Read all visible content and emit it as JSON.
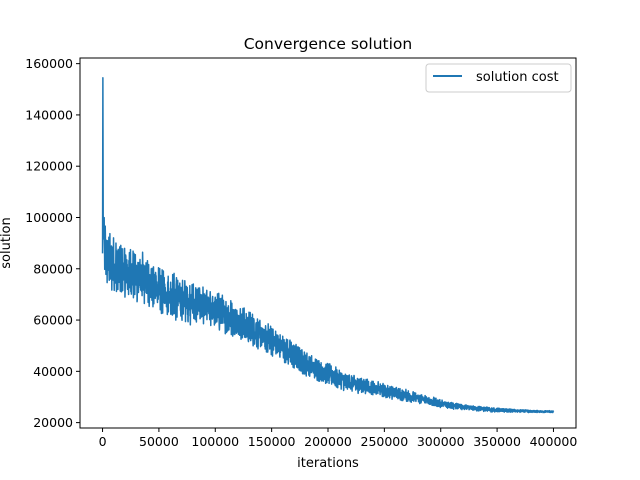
{
  "chart_data": {
    "type": "line",
    "title": "Convergence solution",
    "xlabel": "iterations",
    "ylabel": "solution",
    "xlim": [
      -20000,
      420000
    ],
    "ylim": [
      17900,
      162200
    ],
    "xticks": [
      0,
      50000,
      100000,
      150000,
      200000,
      250000,
      300000,
      350000,
      400000
    ],
    "yticks": [
      20000,
      40000,
      60000,
      80000,
      100000,
      120000,
      140000,
      160000
    ],
    "grid": false,
    "legend": {
      "position": "top-right",
      "entries": [
        "solution cost"
      ]
    },
    "colors": {
      "series": "#1f77b4"
    },
    "series": [
      {
        "name": "solution cost",
        "x": [
          0,
          300,
          600,
          1000,
          2000,
          4000,
          8000,
          12000,
          16000,
          20000,
          25000,
          30000,
          35000,
          40000,
          45000,
          50000,
          55000,
          60000,
          65000,
          70000,
          75000,
          80000,
          85000,
          90000,
          95000,
          100000,
          105000,
          110000,
          115000,
          120000,
          125000,
          130000,
          135000,
          140000,
          145000,
          150000,
          155000,
          160000,
          165000,
          170000,
          175000,
          180000,
          185000,
          190000,
          195000,
          200000,
          205000,
          210000,
          215000,
          220000,
          225000,
          230000,
          235000,
          240000,
          245000,
          250000,
          255000,
          260000,
          265000,
          270000,
          275000,
          280000,
          285000,
          290000,
          295000,
          300000,
          305000,
          310000,
          315000,
          320000,
          325000,
          330000,
          335000,
          340000,
          345000,
          350000,
          355000,
          360000,
          365000,
          370000,
          375000,
          380000,
          385000,
          390000,
          395000,
          400000
        ],
        "values": [
          86000,
          154500,
          97000,
          92000,
          88000,
          84000,
          82000,
          81000,
          80000,
          79000,
          78000,
          77000,
          76000,
          74500,
          73500,
          72000,
          71000,
          70000,
          69000,
          68000,
          67000,
          66500,
          66000,
          65000,
          64000,
          63500,
          62500,
          61500,
          60500,
          59500,
          58500,
          57000,
          56000,
          54500,
          53000,
          52000,
          50500,
          49000,
          47500,
          46000,
          44500,
          43000,
          42000,
          41000,
          40000,
          39000,
          38000,
          37000,
          36000,
          35500,
          35000,
          34500,
          34000,
          33500,
          33000,
          32500,
          32000,
          31500,
          31000,
          30500,
          30000,
          29500,
          29000,
          28500,
          28000,
          27500,
          27000,
          26700,
          26400,
          26100,
          25800,
          25600,
          25400,
          25200,
          25000,
          24900,
          24800,
          24700,
          24600,
          24500,
          24450,
          24400,
          24350,
          24300,
          24280,
          24250
        ]
      }
    ]
  }
}
